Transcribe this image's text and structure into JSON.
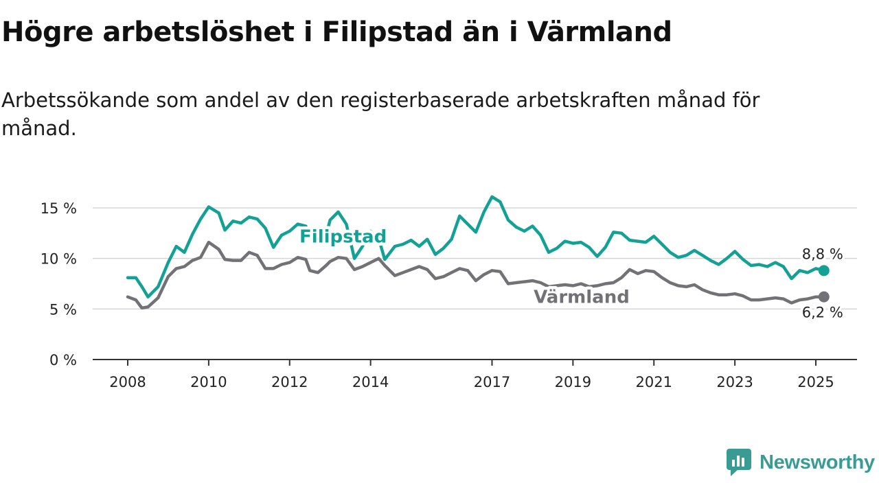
{
  "title": "Högre arbetslöshet i Filipstad än i Värmland",
  "subtitle": "Arbetssökande som andel av den registerbaserade arbetskraften månad för månad.",
  "brand": {
    "name": "Newsworthy",
    "icon": "bar-chart-icon",
    "color": "#3a9b93"
  },
  "chart_data": {
    "type": "line",
    "x_unit": "year",
    "ylim": [
      0,
      15
    ],
    "yticks": [
      0,
      5,
      10,
      15
    ],
    "ytick_labels": [
      "0 %",
      "5 %",
      "10 %",
      "15 %"
    ],
    "xticks": [
      2008,
      2010,
      2012,
      2014,
      2017,
      2019,
      2021,
      2023,
      2025
    ],
    "xtick_labels": [
      "2008",
      "2010",
      "2012",
      "2014",
      "2017",
      "2019",
      "2021",
      "2023",
      "2025"
    ],
    "grid": true,
    "series": [
      {
        "name": "Filipstad",
        "color": "#14a195",
        "end_label": "8,8 %",
        "x": [
          2008.0,
          2008.2,
          2008.35,
          2008.5,
          2008.75,
          2009.0,
          2009.2,
          2009.4,
          2009.6,
          2009.8,
          2010.0,
          2010.25,
          2010.4,
          2010.6,
          2010.8,
          2011.0,
          2011.2,
          2011.4,
          2011.6,
          2011.8,
          2012.0,
          2012.2,
          2012.4,
          2012.5,
          2012.7,
          2012.9,
          2013.0,
          2013.2,
          2013.4,
          2013.6,
          2013.8,
          2014.0,
          2014.2,
          2014.35,
          2014.6,
          2014.8,
          2015.0,
          2015.2,
          2015.4,
          2015.6,
          2015.8,
          2016.0,
          2016.2,
          2016.4,
          2016.6,
          2016.8,
          2017.0,
          2017.2,
          2017.4,
          2017.6,
          2017.8,
          2018.0,
          2018.2,
          2018.4,
          2018.6,
          2018.8,
          2019.0,
          2019.2,
          2019.4,
          2019.6,
          2019.8,
          2020.0,
          2020.2,
          2020.4,
          2020.6,
          2020.8,
          2021.0,
          2021.2,
          2021.4,
          2021.6,
          2021.8,
          2022.0,
          2022.2,
          2022.4,
          2022.6,
          2022.8,
          2023.0,
          2023.2,
          2023.4,
          2023.6,
          2023.8,
          2024.0,
          2024.2,
          2024.4,
          2024.6,
          2024.8,
          2025.0,
          2025.2
        ],
        "values": [
          8.1,
          8.1,
          7.2,
          6.2,
          7.2,
          9.6,
          11.2,
          10.6,
          12.4,
          13.9,
          15.1,
          14.5,
          12.8,
          13.7,
          13.5,
          14.1,
          13.9,
          13.0,
          11.1,
          12.3,
          12.7,
          13.4,
          13.2,
          12.4,
          11.6,
          12.3,
          13.8,
          14.6,
          13.4,
          10.0,
          11.2,
          12.7,
          12.0,
          9.9,
          11.2,
          11.4,
          11.8,
          11.2,
          11.9,
          10.4,
          11.0,
          11.9,
          14.2,
          13.4,
          12.6,
          14.6,
          16.1,
          15.6,
          13.8,
          13.1,
          12.7,
          13.2,
          12.3,
          10.6,
          11.0,
          11.7,
          11.5,
          11.6,
          11.1,
          10.2,
          11.1,
          12.6,
          12.5,
          11.8,
          11.7,
          11.6,
          12.2,
          11.4,
          10.6,
          10.1,
          10.3,
          10.8,
          10.3,
          9.8,
          9.4,
          10.0,
          10.7,
          9.9,
          9.3,
          9.4,
          9.2,
          9.6,
          9.2,
          8.0,
          8.8,
          8.6,
          9.0,
          8.8
        ]
      },
      {
        "name": "Värmland",
        "color": "#727175",
        "end_label": "6,2 %",
        "x": [
          2008.0,
          2008.2,
          2008.35,
          2008.5,
          2008.75,
          2009.0,
          2009.2,
          2009.4,
          2009.6,
          2009.8,
          2010.0,
          2010.25,
          2010.4,
          2010.6,
          2010.8,
          2011.0,
          2011.2,
          2011.4,
          2011.6,
          2011.8,
          2012.0,
          2012.2,
          2012.4,
          2012.5,
          2012.7,
          2012.9,
          2013.0,
          2013.2,
          2013.4,
          2013.6,
          2013.8,
          2014.0,
          2014.2,
          2014.35,
          2014.6,
          2014.8,
          2015.0,
          2015.2,
          2015.4,
          2015.6,
          2015.8,
          2016.0,
          2016.2,
          2016.4,
          2016.6,
          2016.8,
          2017.0,
          2017.2,
          2017.4,
          2017.6,
          2017.8,
          2018.0,
          2018.2,
          2018.4,
          2018.6,
          2018.8,
          2019.0,
          2019.2,
          2019.4,
          2019.6,
          2019.8,
          2020.0,
          2020.2,
          2020.4,
          2020.6,
          2020.8,
          2021.0,
          2021.2,
          2021.4,
          2021.6,
          2021.8,
          2022.0,
          2022.2,
          2022.4,
          2022.6,
          2022.8,
          2023.0,
          2023.2,
          2023.4,
          2023.6,
          2023.8,
          2024.0,
          2024.2,
          2024.4,
          2024.6,
          2024.8,
          2025.0,
          2025.2
        ],
        "values": [
          6.2,
          5.9,
          5.1,
          5.2,
          6.1,
          8.2,
          9.0,
          9.2,
          9.8,
          10.1,
          11.6,
          10.9,
          9.9,
          9.8,
          9.8,
          10.6,
          10.3,
          9.0,
          9.0,
          9.4,
          9.6,
          10.1,
          9.9,
          8.8,
          8.6,
          9.3,
          9.7,
          10.1,
          10.0,
          8.9,
          9.2,
          9.6,
          10.0,
          9.3,
          8.3,
          8.6,
          8.9,
          9.2,
          8.9,
          8.0,
          8.2,
          8.6,
          9.0,
          8.8,
          7.8,
          8.4,
          8.8,
          8.7,
          7.5,
          7.6,
          7.7,
          7.8,
          7.6,
          7.2,
          7.3,
          7.4,
          7.3,
          7.5,
          7.2,
          7.3,
          7.5,
          7.6,
          8.1,
          8.9,
          8.5,
          8.8,
          8.7,
          8.1,
          7.6,
          7.3,
          7.2,
          7.4,
          6.9,
          6.6,
          6.4,
          6.4,
          6.5,
          6.3,
          5.9,
          5.9,
          6.0,
          6.1,
          6.0,
          5.6,
          5.9,
          6.0,
          6.2,
          6.2
        ]
      }
    ]
  }
}
